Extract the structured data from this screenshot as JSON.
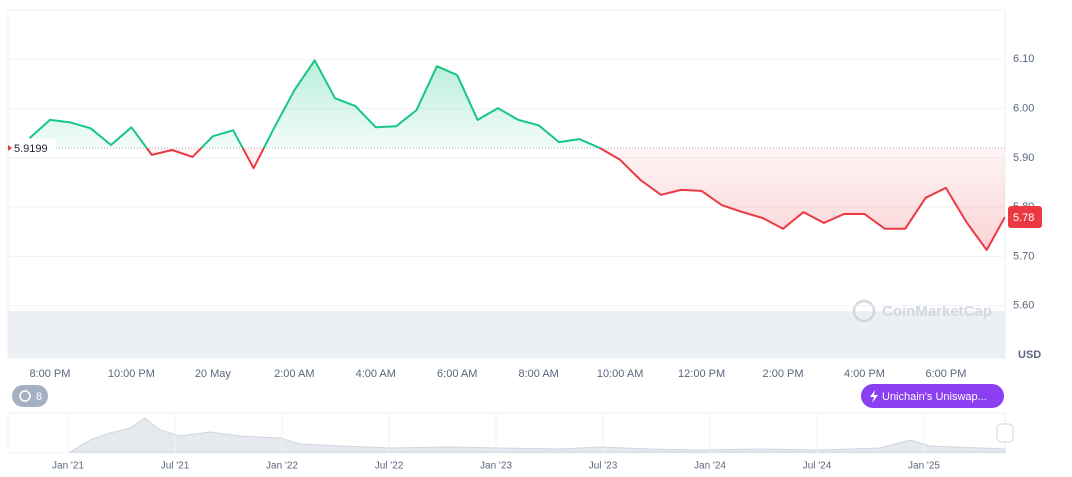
{
  "chart_data": {
    "type": "line",
    "x": [
      19.5,
      20,
      20.5,
      21,
      21.5,
      22,
      22.5,
      23,
      23.5,
      24,
      24.5,
      25,
      25.5,
      26,
      26.5,
      27,
      27.5,
      28,
      28.5,
      29,
      29.5,
      30,
      30.5,
      31,
      31.5,
      32,
      32.5,
      33,
      33.5,
      34,
      34.5,
      35,
      35.5,
      36,
      36.5,
      37,
      37.5,
      38,
      38.5,
      39,
      39.5,
      40,
      40.5,
      41,
      41.5,
      42,
      42.5,
      43,
      43.45
    ],
    "values": [
      5.94,
      5.977,
      5.972,
      5.96,
      5.926,
      5.962,
      5.906,
      5.916,
      5.902,
      5.944,
      5.956,
      5.879,
      5.96,
      6.037,
      6.098,
      6.021,
      6.005,
      5.962,
      5.964,
      5.997,
      6.086,
      6.068,
      5.977,
      6.001,
      5.977,
      5.966,
      5.932,
      5.938,
      5.92,
      5.896,
      5.855,
      5.825,
      5.835,
      5.833,
      5.804,
      5.79,
      5.778,
      5.756,
      5.79,
      5.768,
      5.786,
      5.786,
      5.756,
      5.756,
      5.819,
      5.839,
      5.77,
      5.713,
      5.78
    ],
    "baseline": 5.9199,
    "color_up": "#16c784",
    "color_down": "#ea3943",
    "xlim": [
      18.97,
      43.45
    ],
    "xticks": [
      {
        "value": 20,
        "label": "8:00 PM"
      },
      {
        "value": 22,
        "label": "10:00 PM"
      },
      {
        "value": 24,
        "label": "20 May"
      },
      {
        "value": 26,
        "label": "2:00 AM"
      },
      {
        "value": 28,
        "label": "4:00 AM"
      },
      {
        "value": 30,
        "label": "6:00 AM"
      },
      {
        "value": 32,
        "label": "8:00 AM"
      },
      {
        "value": 34,
        "label": "10:00 AM"
      },
      {
        "value": 36,
        "label": "12:00 PM"
      },
      {
        "value": 38,
        "label": "2:00 PM"
      },
      {
        "value": 40,
        "label": "4:00 PM"
      },
      {
        "value": 42,
        "label": "6:00 PM"
      }
    ],
    "ylim": [
      5.5,
      6.2
    ],
    "yticks": [
      {
        "value": 5.6,
        "label": "5.60"
      },
      {
        "value": 5.7,
        "label": "5.70"
      },
      {
        "value": 5.8,
        "label": "5.80"
      },
      {
        "value": 5.9,
        "label": "5.90"
      },
      {
        "value": 6.0,
        "label": "6.00"
      },
      {
        "value": 6.1,
        "label": "6.10"
      }
    ],
    "grid": true,
    "y_unit": "USD",
    "watermark": "CoinMarketCap"
  },
  "ui": {
    "history_count": "8",
    "tag": "Unichain's Uniswap...",
    "navigator_labels": [
      "Jan '21",
      "Jul '21",
      "Jan '22",
      "Jul '22",
      "Jan '23",
      "Jul '23",
      "Jan '24",
      "Jul '24",
      "Jan '25"
    ]
  }
}
